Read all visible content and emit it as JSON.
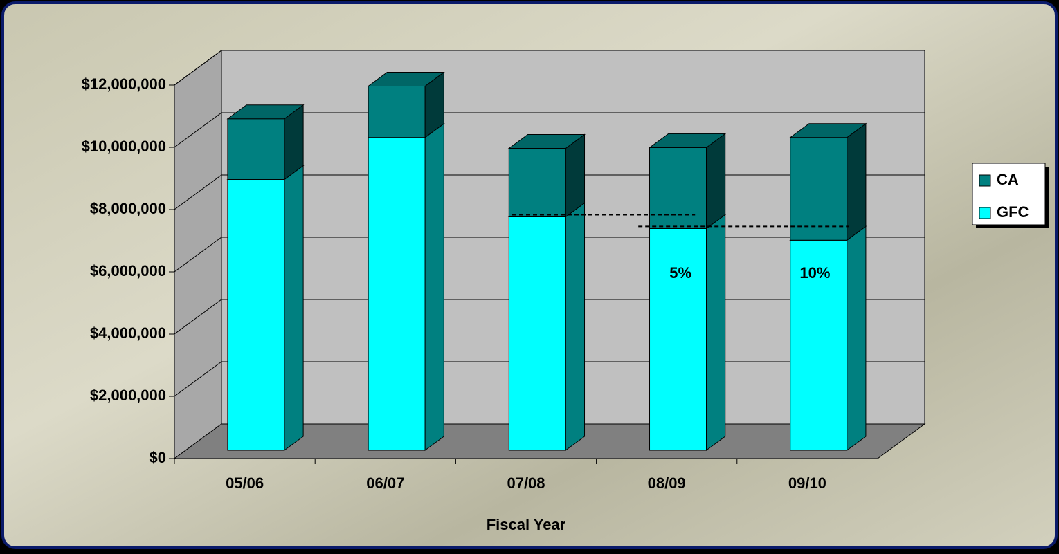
{
  "chart_data": {
    "type": "bar",
    "stacked": true,
    "x_label": "Fiscal Year",
    "categories": [
      "05/06",
      "06/07",
      "07/08",
      "08/09",
      "09/10"
    ],
    "series": [
      {
        "name": "GFC",
        "color": "#00ffff",
        "values": [
          8700000,
          10050000,
          7500000,
          7125000,
          6750000
        ]
      },
      {
        "name": "CA",
        "color": "#008080",
        "values": [
          1950000,
          1650000,
          2200000,
          2600000,
          3300000
        ]
      }
    ],
    "ylim": [
      0,
      12000000
    ],
    "yticks": [
      {
        "value": 0,
        "label": "$0"
      },
      {
        "value": 2000000,
        "label": "$2,000,000"
      },
      {
        "value": 4000000,
        "label": "$4,000,000"
      },
      {
        "value": 6000000,
        "label": "$6,000,000"
      },
      {
        "value": 8000000,
        "label": "$8,000,000"
      },
      {
        "value": 10000000,
        "label": "$10,000,000"
      },
      {
        "value": 12000000,
        "label": "$12,000,000"
      }
    ],
    "annotations": [
      "5%",
      "10%"
    ],
    "grid": true,
    "legend": "right"
  }
}
